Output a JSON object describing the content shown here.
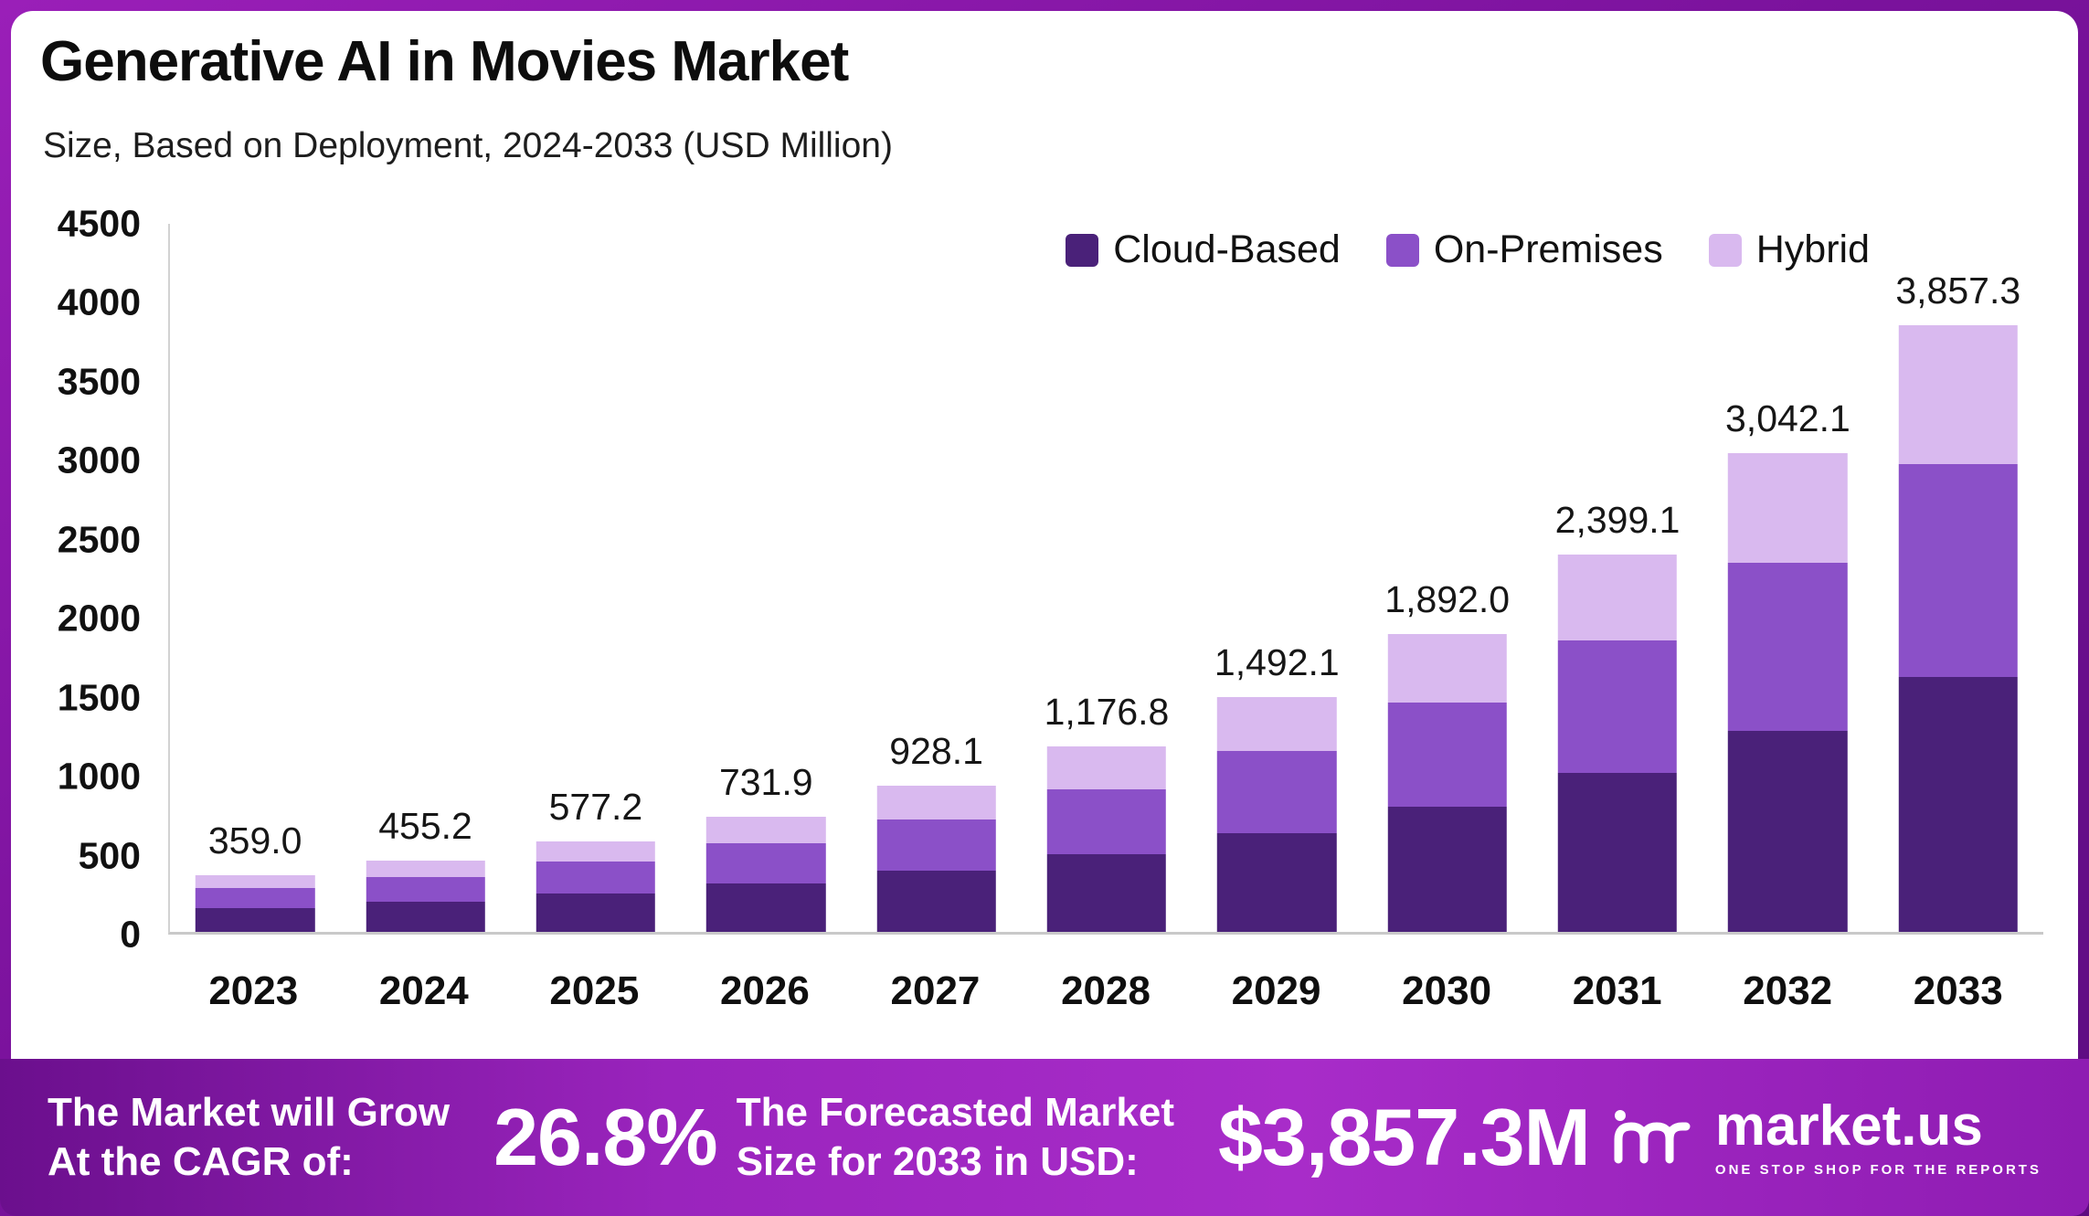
{
  "header": {
    "title": "Generative AI in Movies Market",
    "subtitle": "Size, Based on Deployment, 2024-2033 (USD Million)"
  },
  "chart_data": {
    "type": "bar",
    "stacked": true,
    "title": "Generative AI in Movies Market",
    "subtitle": "Size, Based on Deployment, 2024-2033 (USD Million)",
    "categories": [
      "2023",
      "2024",
      "2025",
      "2026",
      "2027",
      "2028",
      "2029",
      "2030",
      "2031",
      "2032",
      "2033"
    ],
    "series": [
      {
        "name": "Cloud-Based",
        "color": "#4a2179",
        "values": [
          151,
          191,
          242,
          307,
          390,
          494,
          627,
          795,
          1008,
          1278,
          1620
        ]
      },
      {
        "name": "On-Premises",
        "color": "#8b50c8",
        "values": [
          126,
          160,
          203,
          257,
          327,
          413,
          524,
          665,
          843,
          1069,
          1355
        ]
      },
      {
        "name": "Hybrid",
        "color": "#d9b9ef",
        "values": [
          82,
          104.2,
          132.2,
          167.9,
          211.1,
          269.8,
          341.1,
          432,
          548.1,
          695.1,
          882.3
        ]
      }
    ],
    "totals": [
      359.0,
      455.2,
      577.2,
      731.9,
      928.1,
      1176.8,
      1492.1,
      1892.0,
      2399.1,
      3042.1,
      3857.3
    ],
    "totals_formatted": [
      "359.0",
      "455.2",
      "577.2",
      "731.9",
      "928.1",
      "1,176.8",
      "1,492.1",
      "1,892.0",
      "2,399.1",
      "3,042.1",
      "3,857.3"
    ],
    "ylim": [
      0,
      4500
    ],
    "yticks": [
      0,
      500,
      1000,
      1500,
      2000,
      2500,
      3000,
      3500,
      4000,
      4500
    ],
    "legend_position": "top-right",
    "grid": false,
    "xlabel": "",
    "ylabel": ""
  },
  "footer": {
    "cagr_label_line1": "The Market will Grow",
    "cagr_label_line2": "At the CAGR of:",
    "cagr_value": "26.8%",
    "forecast_label_line1": "The Forecasted Market",
    "forecast_label_line2": "Size for 2033 in USD:",
    "forecast_value": "$3,857.3M",
    "brand": "market.us",
    "brand_tagline": "ONE STOP SHOP FOR THE REPORTS"
  },
  "theme": {
    "cloud_based": "#4a2179",
    "on_premises": "#8b50c8",
    "hybrid": "#d9b9ef",
    "footer_gradient_start": "#6b0f8d",
    "footer_gradient_end": "#a82cc9",
    "frame_purple": "#7a129c"
  }
}
